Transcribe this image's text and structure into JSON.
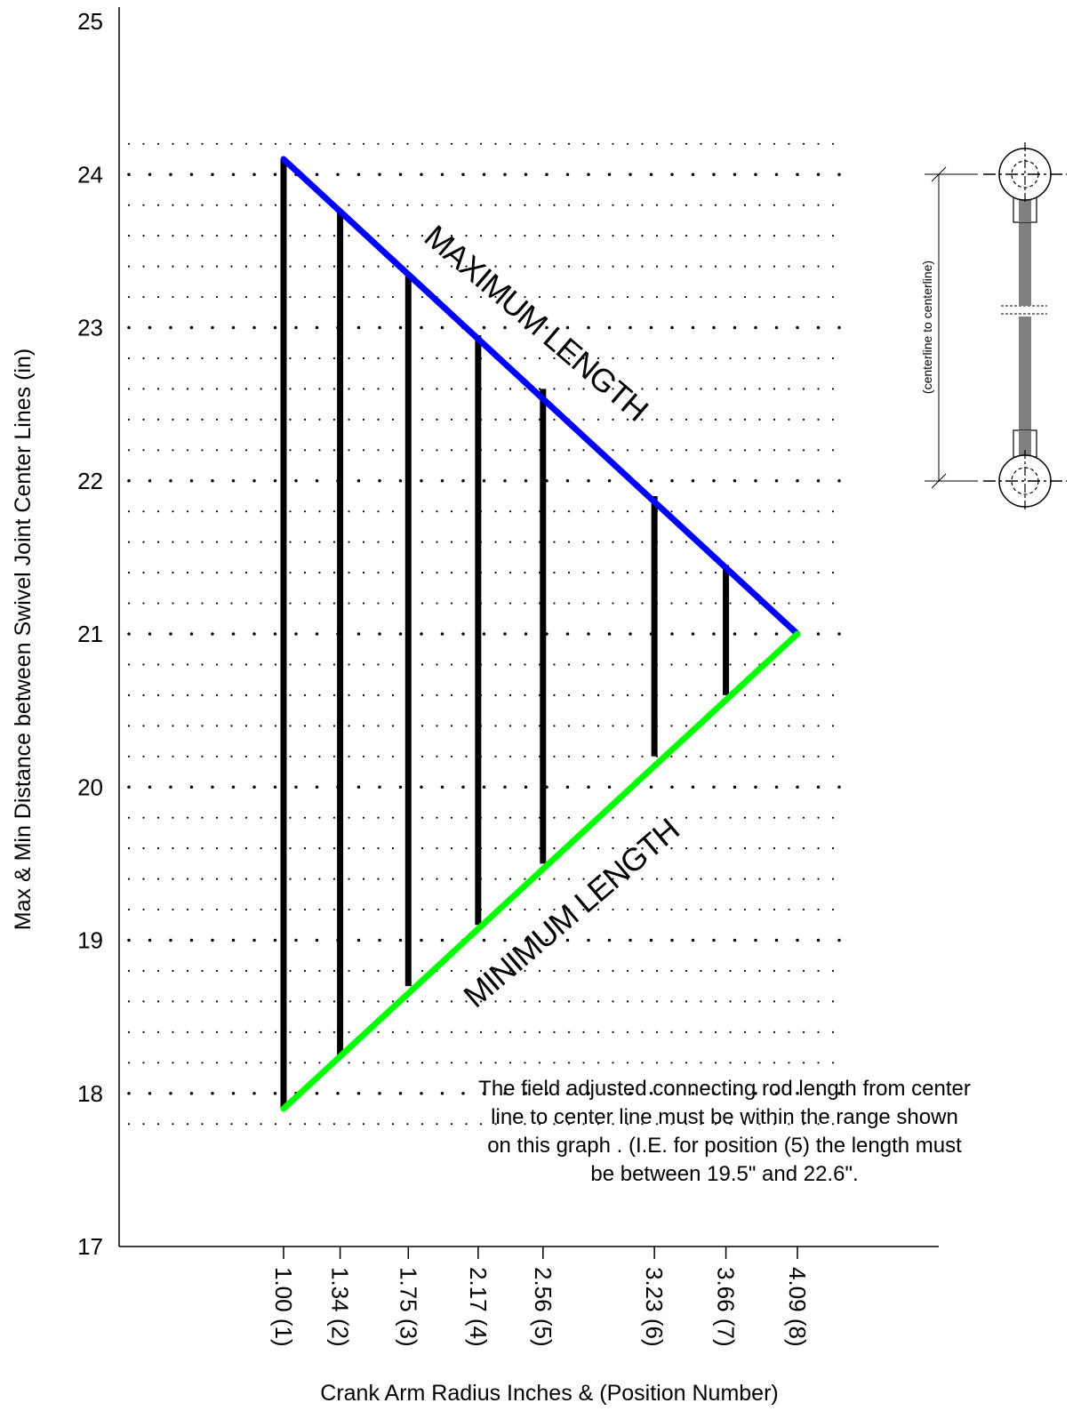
{
  "chart_data": {
    "type": "line",
    "xlabel": "Crank Arm Radius Inches & (Position Number)",
    "ylabel": "Max & Min Distance between Swivel Joint Center Lines (in)",
    "ylim": [
      17,
      25
    ],
    "y_ticks": [
      "17",
      "18",
      "19",
      "20",
      "21",
      "22",
      "23",
      "24",
      "25"
    ],
    "grid": "dotted",
    "x": [
      1.0,
      1.34,
      1.75,
      2.17,
      2.56,
      3.23,
      3.66,
      4.09
    ],
    "x_tick_labels": [
      "1.00 (1)",
      "1.34 (2)",
      "1.75 (3)",
      "2.17 (4)",
      "2.56 (5)",
      "3.23 (6)",
      "3.66 (7)",
      "4.09 (8)"
    ],
    "series": [
      {
        "name": "MAXIMUM LENGTH",
        "color": "#0000ff",
        "values": [
          24.1,
          23.75,
          23.35,
          22.95,
          22.6,
          21.9,
          21.45,
          21.0
        ]
      },
      {
        "name": "MINIMUM LENGTH",
        "color": "#00ff00",
        "values": [
          17.9,
          18.25,
          18.7,
          19.1,
          19.5,
          20.2,
          20.6,
          21.0
        ]
      }
    ],
    "range_bars_color": "#000000",
    "annotation": [
      "The field adjusted connecting rod length from center",
      "line to center line must be within the  range shown",
      "on this graph . (I.E. for position (5) the length must",
      "be between 19.5\" and 22.6\"."
    ],
    "diagram_label": "(centerline to centerline)"
  }
}
